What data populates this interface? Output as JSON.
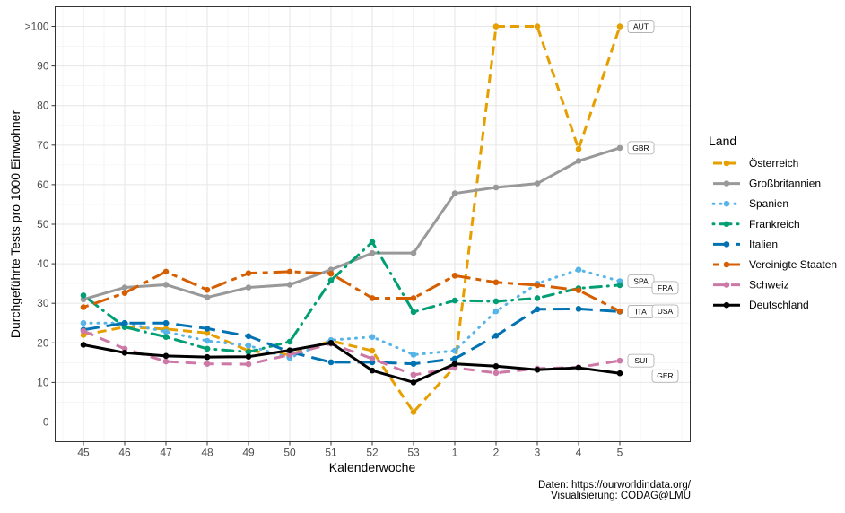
{
  "chart_data": {
    "type": "line",
    "title": "",
    "xlabel": "Kalenderwoche",
    "ylabel": "Durchgeführte Tests pro 1000 Einwohner",
    "categories": [
      "45",
      "46",
      "47",
      "48",
      "49",
      "50",
      "51",
      "52",
      "53",
      "1",
      "2",
      "3",
      "4",
      "5"
    ],
    "y_ticks": [
      ">100",
      "90",
      "80",
      "70",
      "60",
      "50",
      "40",
      "30",
      "20",
      "10",
      "0"
    ],
    "ylim": [
      -5,
      105
    ],
    "grid": true,
    "legend": {
      "title": "Land",
      "position": "right"
    },
    "series": [
      {
        "name": "Österreich",
        "code": "AUT",
        "color": "#E69F00",
        "dash": "10,6",
        "values": [
          22,
          24,
          23.5,
          22.5,
          18,
          17,
          20.5,
          18,
          2.5,
          14,
          100,
          100,
          69,
          100
        ]
      },
      {
        "name": "Großbritannien",
        "code": "GBR",
        "color": "#999999",
        "dash": "",
        "values": [
          31,
          34,
          34.7,
          31.5,
          34,
          34.7,
          38.5,
          42.7,
          42.7,
          57.8,
          59.3,
          60.3,
          66,
          69.3
        ]
      },
      {
        "name": "Spanien",
        "code": "SPA",
        "color": "#56B4E9",
        "dash": "1,7",
        "values": [
          25,
          25,
          22.8,
          20.5,
          19.3,
          16.2,
          20.7,
          21.5,
          17,
          18,
          28,
          35,
          38.5,
          35.6
        ]
      },
      {
        "name": "Frankreich",
        "code": "FRA",
        "color": "#009E73",
        "dash": "1,7,12,7",
        "values": [
          32,
          24,
          21.5,
          18.5,
          17.7,
          20.3,
          35.8,
          45.5,
          27.8,
          30.7,
          30.5,
          31.3,
          33.8,
          34.6
        ]
      },
      {
        "name": "Italien",
        "code": "ITA",
        "color": "#0072B2",
        "dash": "18,8",
        "values": [
          23.3,
          25,
          25,
          23.6,
          21.7,
          17.7,
          15.1,
          15.1,
          14.7,
          16,
          21.8,
          28.5,
          28.6,
          27.9
        ]
      },
      {
        "name": "Vereinigte Staaten",
        "code": "USA",
        "color": "#D55E00",
        "dash": "6,6,18,6",
        "values": [
          29,
          32.6,
          38,
          33.4,
          37.6,
          38,
          37.5,
          31.3,
          31.3,
          37,
          35.3,
          34.6,
          33.3,
          28
        ]
      },
      {
        "name": "Schweiz",
        "code": "SUI",
        "color": "#CC79A7",
        "dash": "12,8",
        "values": [
          23,
          18.5,
          15.3,
          14.7,
          14.6,
          17,
          19.8,
          16,
          11.9,
          13.7,
          12.4,
          13.5,
          13.8,
          15.5
        ]
      },
      {
        "name": "Deutschland",
        "code": "GER",
        "color": "#000000",
        "dash": "",
        "values": [
          19.5,
          17.5,
          16.7,
          16.4,
          16.5,
          18.1,
          20,
          13,
          10,
          14.7,
          14.1,
          13.2,
          13.7,
          12.3
        ]
      }
    ],
    "caption": [
      "Daten: https://ourworldindata.org/",
      "Visualisierung: CODAG@LMU"
    ]
  }
}
